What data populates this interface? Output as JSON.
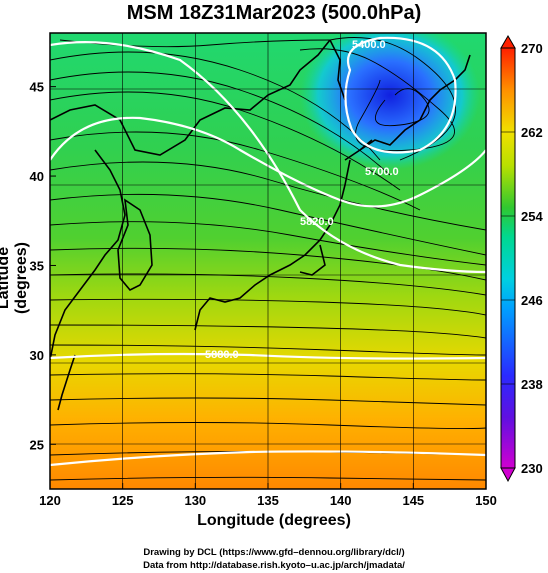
{
  "title": "MSM 18Z31Mar2023 (500.0hPa)",
  "axes": {
    "xlabel": "Longitude (degrees)",
    "ylabel": "Latitude  (degrees)",
    "x_ticks": [
      "120",
      "125",
      "130",
      "135",
      "140",
      "145",
      "150"
    ],
    "y_ticks": [
      "25",
      "30",
      "35",
      "40",
      "45"
    ],
    "xlim": [
      120,
      150
    ],
    "ylim": [
      22.5,
      48
    ]
  },
  "colorbar": {
    "ticks": [
      "230",
      "238",
      "246",
      "254",
      "262",
      "270"
    ],
    "range": [
      230,
      270
    ],
    "colors": [
      "#d000d0",
      "#2a2aff",
      "#00c0ff",
      "#00d890",
      "#30c830",
      "#b8e000",
      "#f0e000",
      "#ff9000",
      "#ff2000"
    ]
  },
  "contours": [
    {
      "label": "5400.0"
    },
    {
      "label": "5700.0"
    },
    {
      "label": "5820.0"
    },
    {
      "label": "5880.0"
    }
  ],
  "credits": {
    "line1": "Drawing by DCL (https://www.gfd–dennou.org/library/dcl/)",
    "line2": "Data from http://database.rish.kyoto–u.ac.jp/arch/jmadata/"
  }
}
